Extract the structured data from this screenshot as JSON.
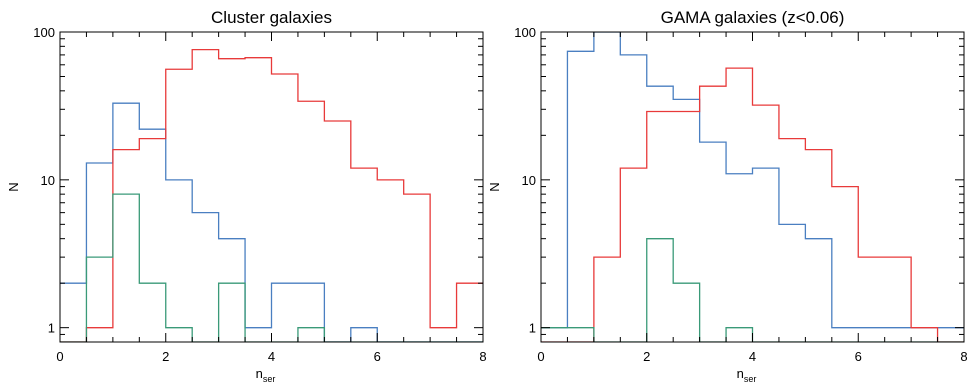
{
  "chart_data": [
    {
      "type": "histogram",
      "title": "Cluster galaxies",
      "xlabel_main": "n",
      "xlabel_sub": "ser",
      "ylabel": "N",
      "xlim": [
        0,
        8
      ],
      "ylim": [
        0.8,
        100
      ],
      "yscale": "log",
      "xticks": [
        0,
        2,
        4,
        6,
        8
      ],
      "yticks": [
        1,
        10,
        100
      ],
      "bin_edges": [
        0,
        0.5,
        1,
        1.5,
        2,
        2.5,
        3,
        3.5,
        4,
        4.5,
        5,
        5.5,
        6,
        6.5,
        7,
        7.5,
        8
      ],
      "series": [
        {
          "color": "#4a7fc1",
          "values": [
            2,
            13,
            33,
            22,
            10,
            6,
            4,
            1,
            2,
            2,
            0,
            1,
            0,
            0,
            0,
            0
          ]
        },
        {
          "color": "#e83a3a",
          "values": [
            0,
            1,
            16,
            19,
            56,
            76,
            66,
            67,
            52,
            34,
            25,
            12,
            10,
            8,
            1,
            2
          ]
        },
        {
          "color": "#3a9a78",
          "values": [
            0,
            3,
            8,
            2,
            1,
            0,
            2,
            0,
            0,
            1,
            0,
            0,
            0,
            0,
            0,
            0
          ]
        }
      ]
    },
    {
      "type": "histogram",
      "title": "GAMA galaxies (z<0.06)",
      "xlabel_main": "n",
      "xlabel_sub": "ser",
      "ylabel": "N",
      "xlim": [
        0,
        8
      ],
      "ylim": [
        0.8,
        100
      ],
      "yscale": "log",
      "xticks": [
        0,
        2,
        4,
        6,
        8
      ],
      "yticks": [
        1,
        10,
        100
      ],
      "bin_edges": [
        0,
        0.5,
        1,
        1.5,
        2,
        2.5,
        3,
        3.5,
        4,
        4.5,
        5,
        5.5,
        6,
        6.5,
        7,
        7.5,
        8
      ],
      "series": [
        {
          "color": "#4a7fc1",
          "values": [
            1,
            74,
            100,
            70,
            43,
            35,
            18,
            11,
            12,
            5,
            4,
            1,
            1,
            1,
            1,
            1
          ]
        },
        {
          "color": "#e83a3a",
          "values": [
            0,
            0,
            3,
            12,
            29,
            29,
            43,
            57,
            32,
            19,
            16,
            9,
            3,
            3,
            1,
            0
          ]
        },
        {
          "color": "#3a9a78",
          "values": [
            1,
            1,
            0,
            0,
            4,
            2,
            0,
            1,
            0,
            0,
            0,
            0,
            0,
            0,
            0,
            0
          ]
        }
      ]
    }
  ]
}
